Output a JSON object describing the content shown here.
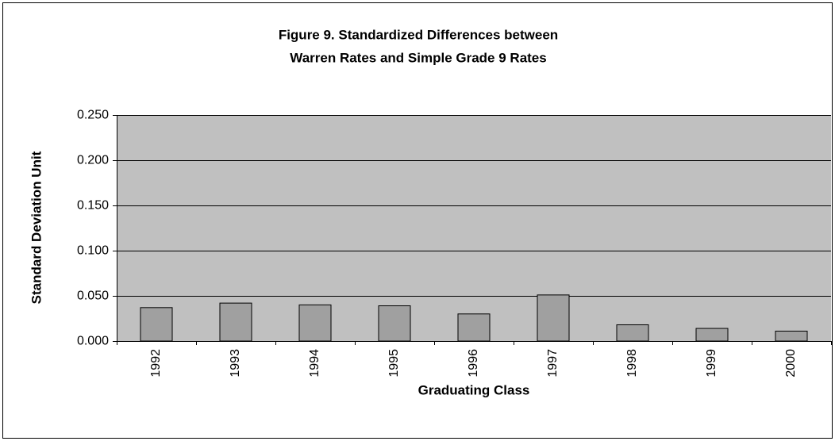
{
  "chart_data": {
    "type": "bar",
    "title": [
      "Figure 9. Standardized Differences between",
      "Warren Rates and Simple Grade 9 Rates"
    ],
    "x_label": "Graduating Class",
    "y_label": "Standard Deviation Unit",
    "categories": [
      "1992",
      "1993",
      "1994",
      "1995",
      "1996",
      "1997",
      "1998",
      "1999",
      "2000"
    ],
    "values": [
      0.037,
      0.042,
      0.04,
      0.039,
      0.03,
      0.051,
      0.018,
      0.014,
      0.011
    ],
    "color": "#a0a0a0",
    "plot_background": "#c0c0c0",
    "ylim": [
      0,
      0.25
    ],
    "yticks": [
      {
        "value": 0,
        "label": "0.000"
      },
      {
        "value": 0.05,
        "label": "0.050"
      },
      {
        "value": 0.1,
        "label": "0.100"
      },
      {
        "value": 0.15,
        "label": "0.150"
      },
      {
        "value": 0.2,
        "label": "0.200"
      },
      {
        "value": 0.25,
        "label": "0.250"
      }
    ],
    "grid": true
  }
}
